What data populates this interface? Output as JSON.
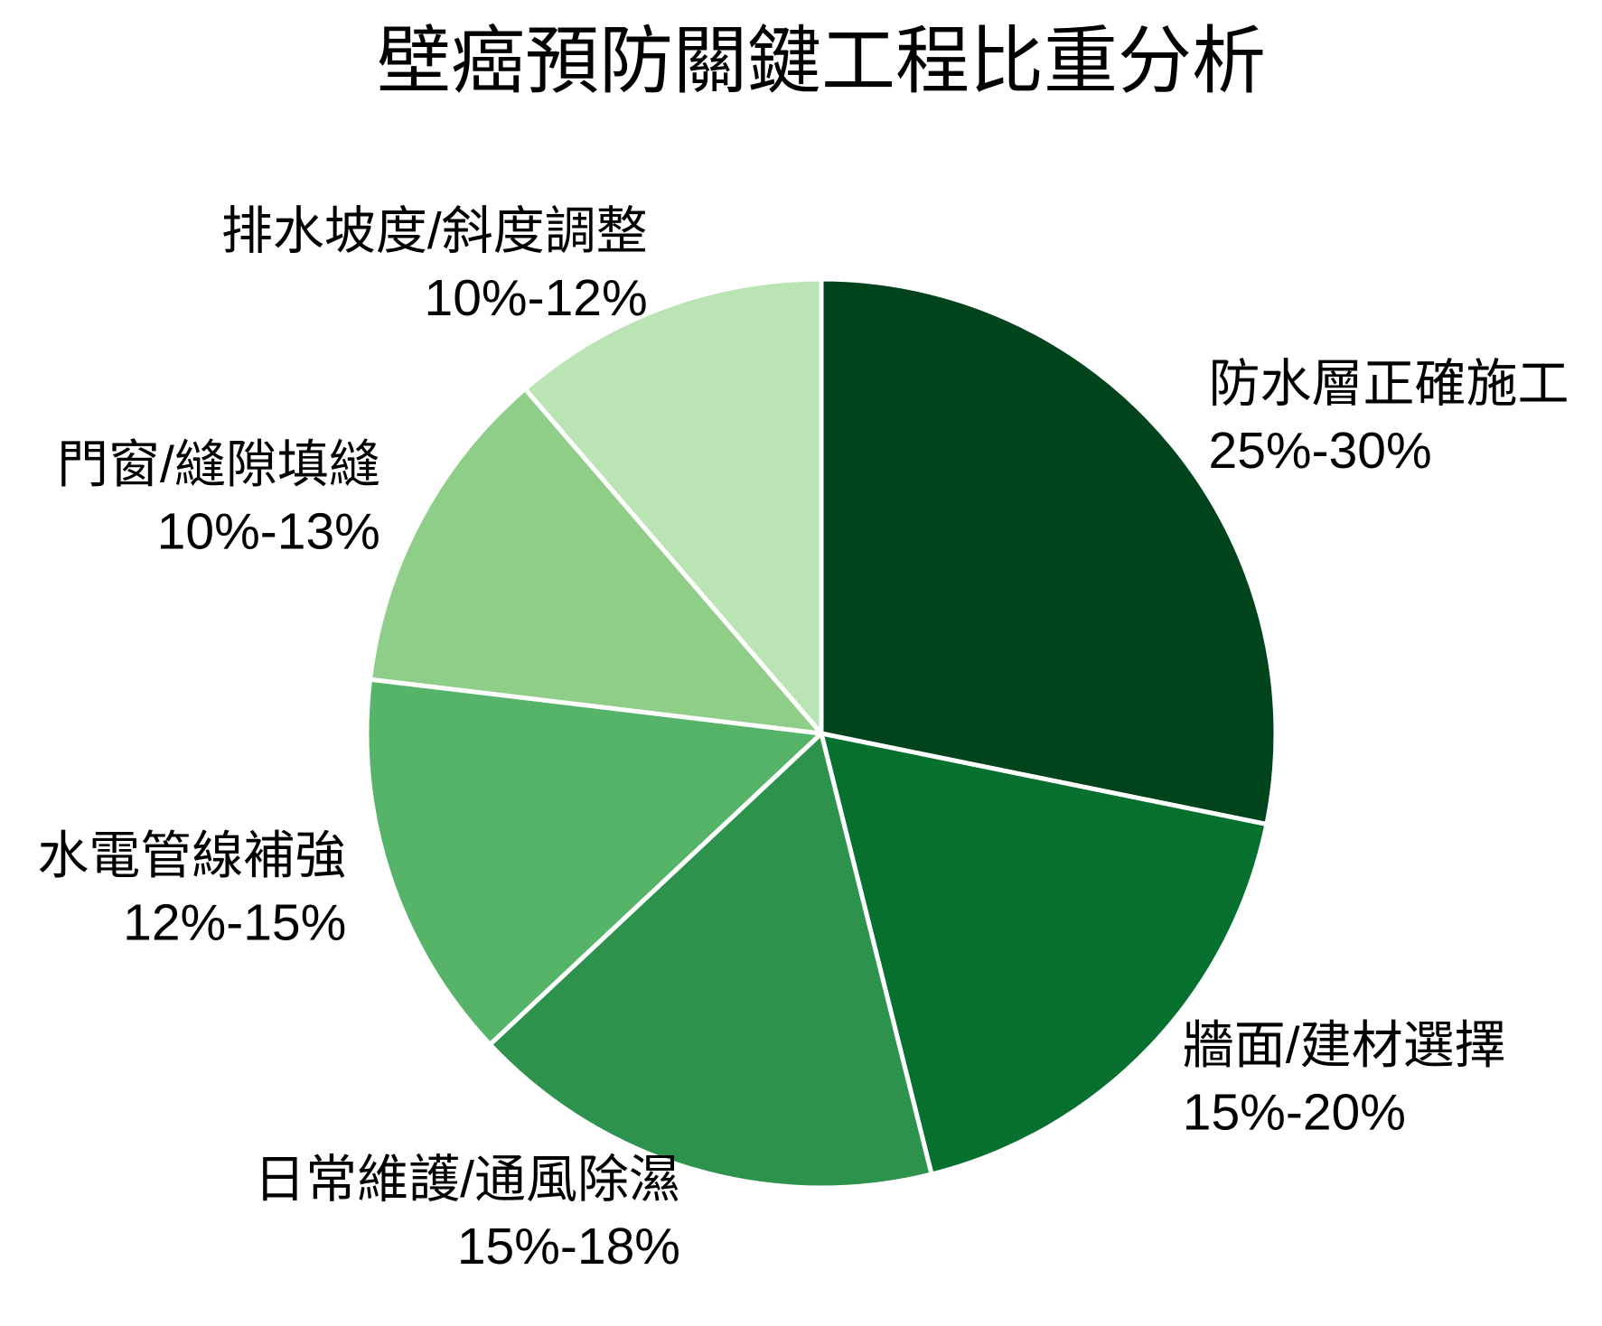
{
  "chart_data": {
    "type": "pie",
    "title": "壁癌預防關鍵工程比重分析",
    "categories": [
      "防水層正確施工",
      "牆面/建材選擇",
      "日常維護/通風除濕",
      "水電管線補強",
      "門窗/縫隙填縫",
      "排水坡度/斜度調整"
    ],
    "range_labels": [
      "25%-30%",
      "15%-20%",
      "15%-18%",
      "12%-15%",
      "10%-13%",
      "10%-12%"
    ],
    "values": [
      28.2,
      17.9,
      16.9,
      13.9,
      11.8,
      11.3
    ],
    "colors": [
      "#00441b",
      "#06712f",
      "#2d924b",
      "#56b469",
      "#8fce89",
      "#bae4b3"
    ]
  }
}
